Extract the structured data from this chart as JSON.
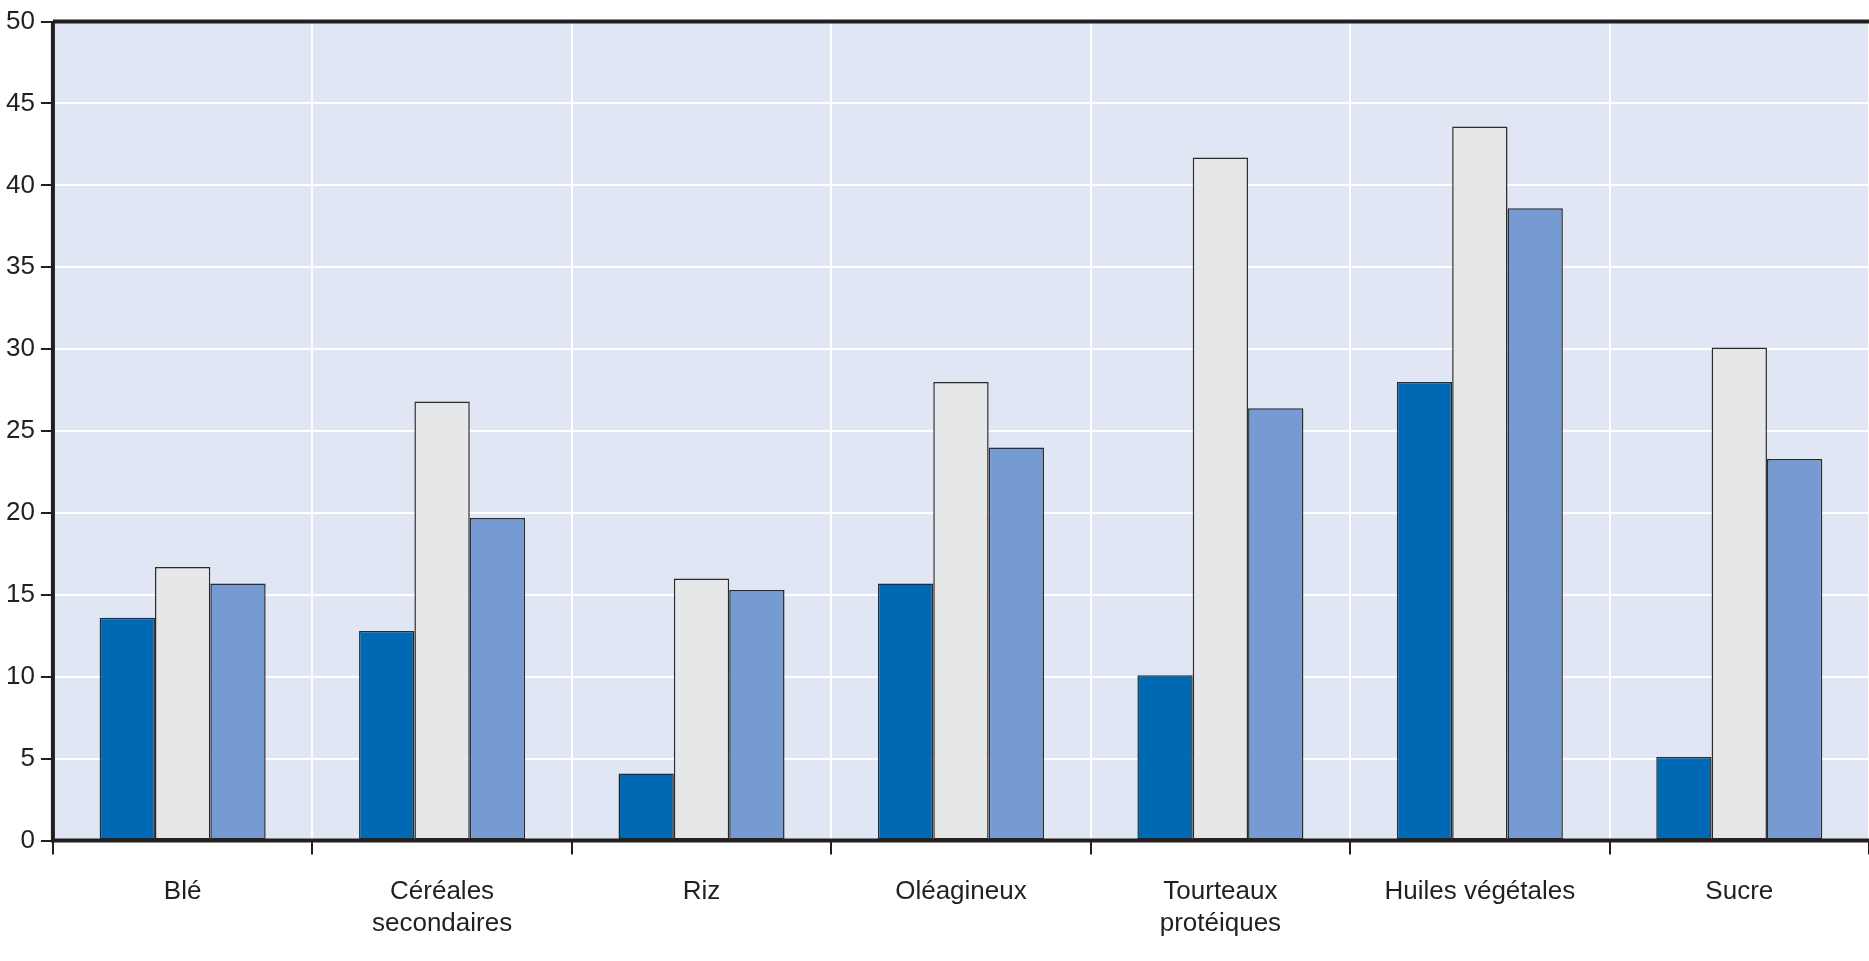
{
  "chart_data": {
    "type": "bar",
    "categories": [
      "Blé",
      "Céréales secondaires",
      "Riz",
      "Oléagineux",
      "Tourteaux protéiques",
      "Huiles végétales",
      "Sucre"
    ],
    "series": [
      {
        "color": "#0069b4",
        "values": [
          13.6,
          12.8,
          4.1,
          15.7,
          10.1,
          28.0,
          5.1
        ]
      },
      {
        "color": "#e6e7e8",
        "values": [
          16.7,
          26.8,
          16.0,
          28.0,
          41.7,
          43.6,
          30.1
        ]
      },
      {
        "color": "#769bd2",
        "values": [
          15.7,
          19.7,
          15.3,
          24.0,
          26.4,
          38.6,
          23.3
        ]
      }
    ],
    "ylim": [
      0,
      50
    ],
    "yticks": [
      0,
      5,
      10,
      15,
      20,
      25,
      30,
      35,
      40,
      45,
      50
    ],
    "grid": true,
    "legend": false
  }
}
